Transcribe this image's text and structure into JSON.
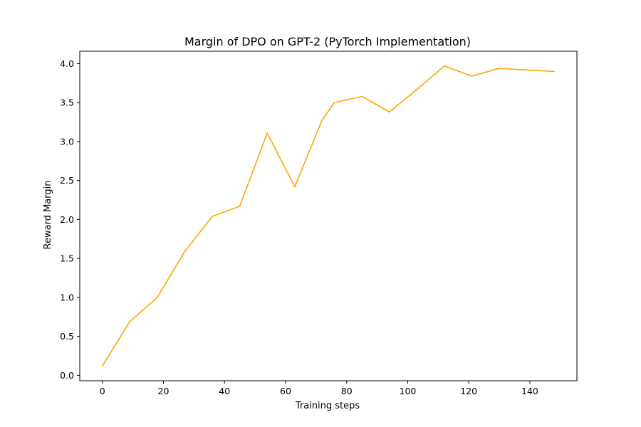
{
  "chart_data": {
    "type": "line",
    "title": "Margin of DPO on GPT-2 (PyTorch Implementation)",
    "xlabel": "Training steps",
    "ylabel": "Reward Margin",
    "xlim": [
      -7.4,
      155.4
    ],
    "ylim": [
      -0.07,
      4.16
    ],
    "xticks": [
      0,
      20,
      40,
      60,
      80,
      100,
      120,
      140
    ],
    "xtick_labels": [
      "0",
      "20",
      "40",
      "60",
      "80",
      "100",
      "120",
      "140"
    ],
    "yticks": [
      0.0,
      0.5,
      1.0,
      1.5,
      2.0,
      2.5,
      3.0,
      3.5,
      4.0
    ],
    "ytick_labels": [
      "0.0",
      "0.5",
      "1.0",
      "1.5",
      "2.0",
      "2.5",
      "3.0",
      "3.5",
      "4.0"
    ],
    "grid": false,
    "series": [
      {
        "color": "#ffa500",
        "x": [
          0,
          9,
          18,
          27,
          36,
          45,
          54,
          63,
          72,
          76,
          85,
          94,
          103,
          112,
          121,
          130,
          139,
          148
        ],
        "y": [
          0.12,
          0.69,
          1.0,
          1.59,
          2.04,
          2.17,
          3.11,
          2.42,
          3.28,
          3.5,
          3.58,
          3.38,
          3.67,
          3.97,
          3.84,
          3.94,
          3.92,
          3.9
        ]
      }
    ]
  }
}
